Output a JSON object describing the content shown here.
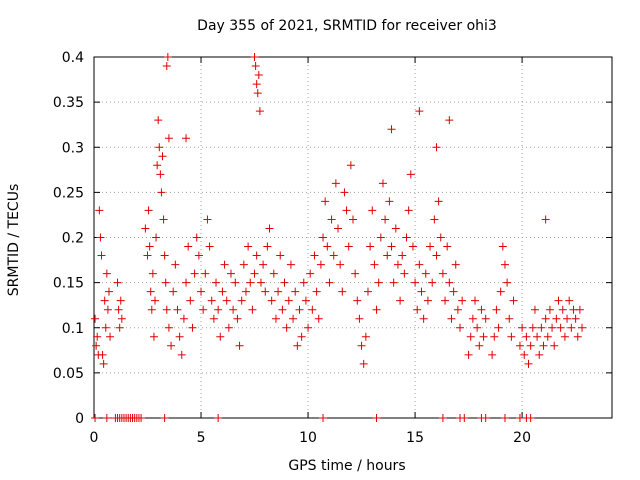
{
  "chart_data": {
    "type": "scatter",
    "title": "Day 355 of 2021, SRMTID for receiver ohi3",
    "xlabel": "GPS time / hours",
    "ylabel": "SRMTID / TECUs",
    "xlim": [
      0,
      24.2
    ],
    "ylim": [
      0,
      0.4
    ],
    "xticks": [
      0,
      5,
      10,
      15,
      20
    ],
    "xtick_labels": [
      "0",
      "5",
      "10",
      "15",
      "20"
    ],
    "yticks": [
      0,
      0.05,
      0.1,
      0.15,
      0.2,
      0.25,
      0.3,
      0.35,
      0.4
    ],
    "ytick_labels": [
      "0",
      "0.05",
      "0.1",
      "0.15",
      "0.2",
      "0.25",
      "0.3",
      "0.35",
      "0.4"
    ],
    "grid": true,
    "marker": "+",
    "color": "#e00000",
    "series": [
      {
        "name": "SRMTID",
        "x": [
          0.05,
          0.1,
          0.15,
          0.2,
          0.25,
          0.3,
          0.35,
          0.4,
          0.45,
          0.5,
          0.55,
          0.6,
          0.65,
          0.7,
          0.75,
          1.1,
          1.15,
          1.2,
          1.25,
          1.3,
          2.4,
          2.5,
          2.55,
          2.6,
          2.65,
          2.7,
          2.75,
          2.8,
          2.85,
          2.9,
          2.95,
          3.0,
          3.05,
          3.1,
          3.15,
          3.2,
          3.25,
          3.3,
          3.35,
          3.4,
          3.5,
          3.6,
          3.7,
          3.8,
          3.9,
          4.0,
          4.1,
          4.2,
          4.3,
          4.4,
          4.5,
          4.6,
          4.7,
          4.8,
          4.9,
          5.0,
          5.1,
          5.2,
          5.3,
          5.4,
          5.5,
          5.6,
          5.7,
          5.8,
          5.9,
          6.0,
          6.1,
          6.2,
          6.3,
          6.4,
          6.5,
          6.6,
          6.7,
          6.8,
          6.9,
          7.0,
          7.1,
          7.2,
          7.3,
          7.4,
          7.5,
          7.6,
          7.65,
          7.7,
          7.75,
          7.8,
          7.9,
          8.0,
          8.1,
          8.2,
          8.3,
          8.4,
          8.5,
          8.6,
          8.7,
          8.8,
          8.9,
          9.0,
          9.1,
          9.2,
          9.3,
          9.4,
          9.5,
          9.6,
          9.7,
          9.8,
          9.9,
          10.0,
          10.1,
          10.2,
          10.3,
          10.4,
          10.5,
          10.6,
          10.7,
          10.8,
          10.9,
          11.0,
          11.1,
          11.2,
          11.3,
          11.4,
          11.5,
          11.6,
          11.7,
          11.8,
          11.9,
          12.0,
          12.1,
          12.2,
          12.3,
          12.4,
          12.5,
          12.6,
          12.7,
          12.8,
          12.9,
          13.0,
          13.1,
          13.2,
          13.3,
          13.4,
          13.5,
          13.6,
          13.7,
          13.8,
          13.9,
          14.0,
          14.1,
          14.2,
          14.3,
          14.4,
          14.5,
          14.6,
          14.7,
          14.8,
          14.9,
          15.0,
          15.1,
          15.2,
          15.3,
          15.4,
          15.5,
          15.6,
          15.7,
          15.8,
          15.9,
          16.0,
          16.1,
          16.2,
          16.3,
          16.4,
          16.5,
          16.6,
          16.7,
          16.8,
          16.9,
          17.0,
          17.1,
          17.2,
          17.5,
          17.6,
          17.7,
          17.8,
          17.9,
          18.0,
          18.1,
          18.2,
          18.3,
          18.6,
          18.7,
          18.8,
          18.9,
          19.0,
          19.1,
          19.2,
          19.3,
          19.4,
          19.5,
          19.6,
          19.9,
          20.0,
          20.1,
          20.2,
          20.3,
          20.4,
          20.5,
          20.6,
          20.7,
          20.8,
          20.9,
          21.0,
          21.1,
          21.2,
          21.3,
          21.4,
          21.5,
          21.6,
          21.7,
          21.8,
          21.9,
          22.0,
          22.1,
          22.2,
          22.3,
          22.4,
          22.5,
          22.6,
          22.7,
          22.8,
          0.05,
          0.6,
          1.0,
          1.1,
          1.2,
          1.3,
          1.4,
          1.5,
          1.6,
          1.7,
          1.8,
          1.9,
          2.0,
          2.1,
          2.2,
          3.3,
          5.8,
          10.7,
          13.2,
          16.3,
          17.1,
          17.3,
          18.1,
          18.3,
          19.2,
          19.9,
          20.2,
          20.4,
          3.4,
          3.45,
          7.5,
          7.55,
          7.6,
          3.5,
          4.3,
          13.9,
          15.2,
          16.0,
          16.6,
          21.1
        ],
        "y": [
          0.11,
          0.08,
          0.09,
          0.07,
          0.23,
          0.2,
          0.18,
          0.07,
          0.06,
          0.13,
          0.1,
          0.16,
          0.12,
          0.14,
          0.09,
          0.15,
          0.12,
          0.1,
          0.13,
          0.11,
          0.21,
          0.18,
          0.23,
          0.19,
          0.14,
          0.12,
          0.16,
          0.09,
          0.13,
          0.2,
          0.28,
          0.33,
          0.3,
          0.27,
          0.25,
          0.29,
          0.22,
          0.18,
          0.15,
          0.12,
          0.1,
          0.08,
          0.14,
          0.17,
          0.12,
          0.09,
          0.07,
          0.11,
          0.15,
          0.19,
          0.13,
          0.1,
          0.16,
          0.2,
          0.18,
          0.14,
          0.12,
          0.16,
          0.22,
          0.19,
          0.13,
          0.11,
          0.15,
          0.12,
          0.09,
          0.14,
          0.17,
          0.13,
          0.1,
          0.16,
          0.12,
          0.15,
          0.11,
          0.08,
          0.13,
          0.17,
          0.14,
          0.19,
          0.15,
          0.12,
          0.16,
          0.18,
          0.36,
          0.38,
          0.34,
          0.15,
          0.17,
          0.14,
          0.19,
          0.21,
          0.13,
          0.16,
          0.11,
          0.14,
          0.18,
          0.12,
          0.15,
          0.1,
          0.13,
          0.17,
          0.11,
          0.14,
          0.08,
          0.12,
          0.09,
          0.15,
          0.13,
          0.1,
          0.16,
          0.12,
          0.18,
          0.14,
          0.11,
          0.17,
          0.2,
          0.24,
          0.19,
          0.15,
          0.22,
          0.18,
          0.26,
          0.21,
          0.17,
          0.14,
          0.25,
          0.23,
          0.19,
          0.28,
          0.22,
          0.16,
          0.13,
          0.11,
          0.08,
          0.06,
          0.09,
          0.14,
          0.19,
          0.23,
          0.17,
          0.12,
          0.15,
          0.2,
          0.26,
          0.22,
          0.18,
          0.24,
          0.19,
          0.15,
          0.21,
          0.17,
          0.13,
          0.18,
          0.16,
          0.2,
          0.23,
          0.27,
          0.19,
          0.15,
          0.12,
          0.17,
          0.14,
          0.11,
          0.16,
          0.13,
          0.19,
          0.15,
          0.22,
          0.18,
          0.24,
          0.2,
          0.16,
          0.13,
          0.19,
          0.15,
          0.11,
          0.14,
          0.17,
          0.12,
          0.1,
          0.13,
          0.07,
          0.09,
          0.11,
          0.13,
          0.1,
          0.08,
          0.12,
          0.09,
          0.11,
          0.07,
          0.09,
          0.12,
          0.1,
          0.14,
          0.19,
          0.17,
          0.15,
          0.11,
          0.09,
          0.13,
          0.08,
          0.1,
          0.07,
          0.09,
          0.06,
          0.08,
          0.1,
          0.12,
          0.09,
          0.07,
          0.1,
          0.08,
          0.11,
          0.09,
          0.12,
          0.1,
          0.08,
          0.11,
          0.13,
          0.1,
          0.12,
          0.09,
          0.11,
          0.13,
          0.1,
          0.12,
          0.11,
          0.09,
          0.12,
          0.1,
          0,
          0,
          0,
          0,
          0,
          0,
          0,
          0,
          0,
          0,
          0,
          0,
          0,
          0,
          0,
          0,
          0,
          0,
          0,
          0,
          0,
          0,
          0,
          0,
          0,
          0,
          0,
          0,
          0.39,
          0.4,
          0.4,
          0.39,
          0.37,
          0.31,
          0.31,
          0.32,
          0.34,
          0.3,
          0.33,
          0.22
        ]
      }
    ]
  }
}
